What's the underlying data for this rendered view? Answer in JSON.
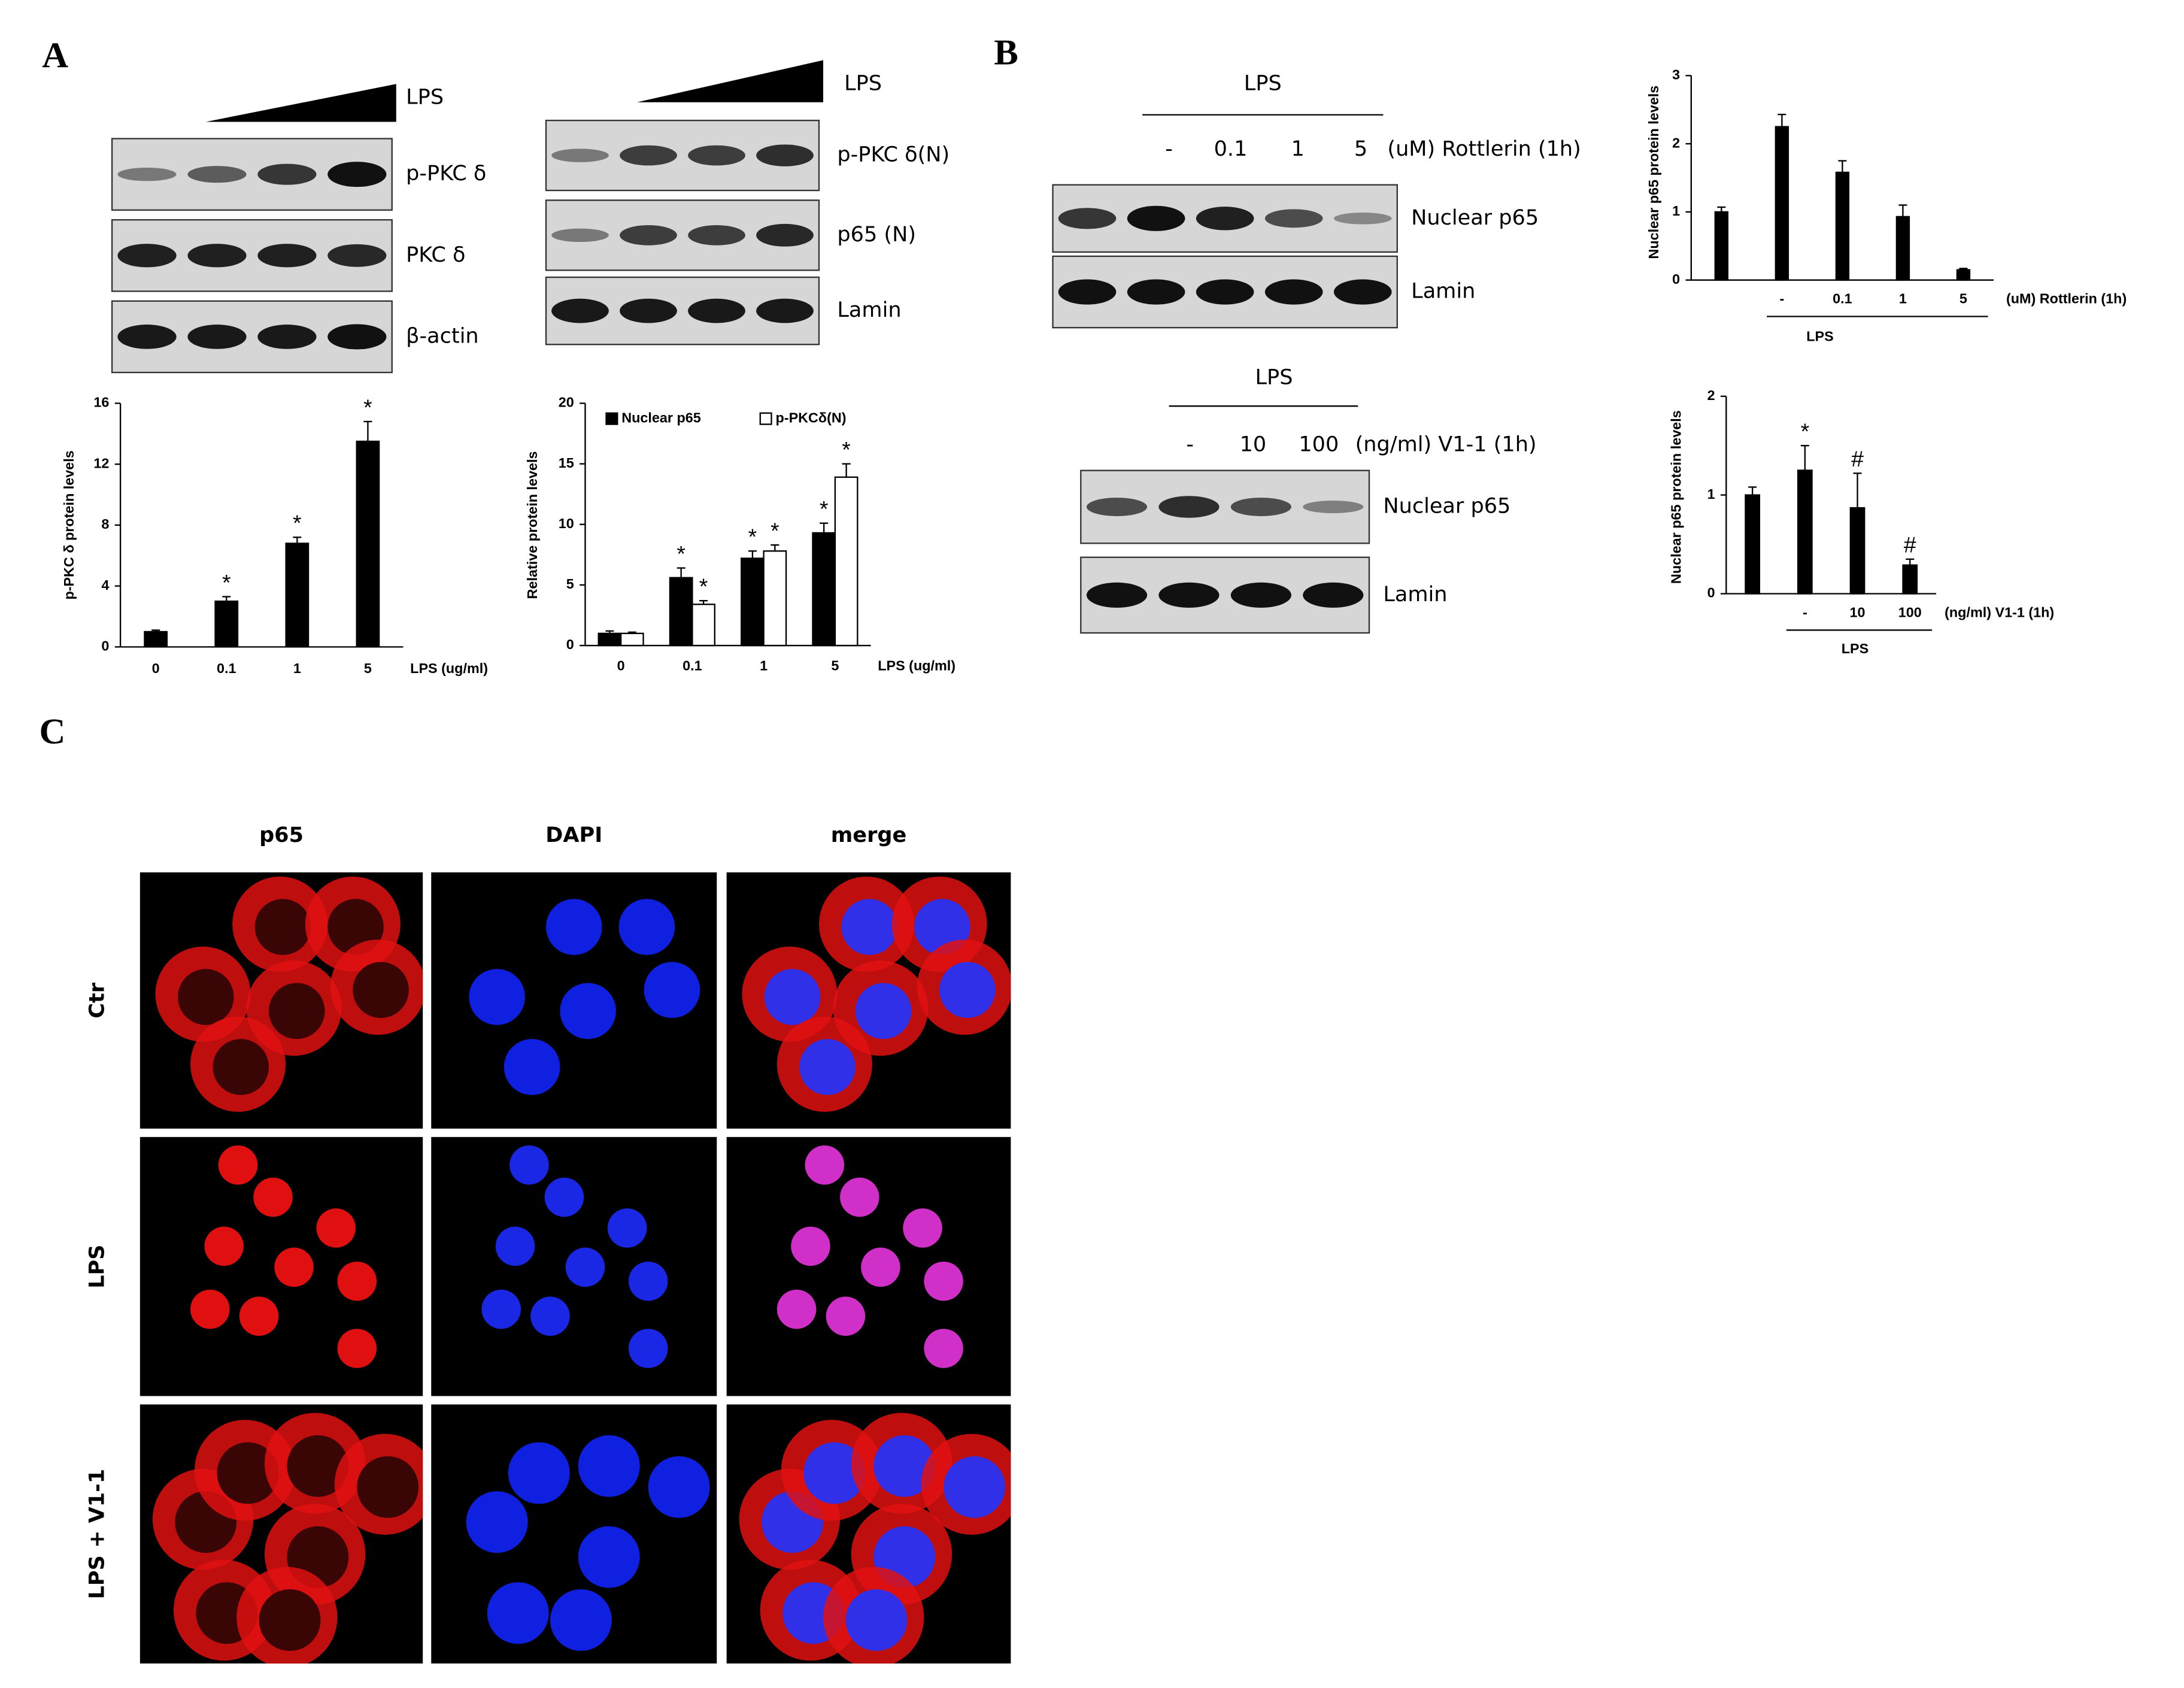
{
  "panel_labels": [
    "A",
    "B",
    "C"
  ],
  "blots": [
    {
      "header": "LPS",
      "rows": [
        "p-PKC δ",
        "PKC δ",
        "β-actin"
      ]
    },
    {
      "header": "LPS",
      "rows": [
        "p-PKC δ(N)",
        "p65 (N)",
        "Lamin"
      ]
    },
    {
      "header": "LPS",
      "lanes": [
        "-",
        "0.1",
        "1",
        "5"
      ],
      "treatment": "(uM) Rottlerin (1h)",
      "rows": [
        "Nuclear p65",
        "Lamin"
      ]
    },
    {
      "header": "LPS",
      "lanes": [
        "-",
        "10",
        "100"
      ],
      "treatment": "(ng/ml)  V1-1 (1h)",
      "rows": [
        "Nuclear p65",
        "Lamin"
      ]
    }
  ],
  "microscopy": {
    "columns": [
      "p65",
      "DAPI",
      "merge"
    ],
    "rows": [
      "Ctr",
      "LPS",
      "LPS + V1-1"
    ]
  },
  "chart_data": [
    {
      "type": "bar",
      "y_label": "p-PKC δ protein levels",
      "x_label": "LPS (ug/ml)",
      "categories": [
        "0",
        "0.1",
        "1",
        "5"
      ],
      "values": [
        1,
        3,
        6.8,
        13.5
      ],
      "errors": [
        0.1,
        0.3,
        0.4,
        1.3
      ],
      "annotations": [
        null,
        "*",
        "*",
        "*"
      ],
      "color": "#000000",
      "ylim": [
        0,
        16
      ],
      "yticks": [
        0,
        4,
        8,
        12,
        16
      ]
    },
    {
      "type": "grouped-bar",
      "y_label": "Relative protein levels",
      "x_label": "LPS (ug/ml)",
      "categories": [
        "0",
        "0.1",
        "1",
        "5"
      ],
      "series": [
        {
          "name": "Nuclear p65",
          "color": "#000000",
          "values": [
            1,
            5.6,
            7.2,
            9.3
          ],
          "errors": [
            0.2,
            0.8,
            0.6,
            0.8
          ],
          "annotations": [
            null,
            "*",
            "*",
            "*"
          ]
        },
        {
          "name": "p-PKCδ(N)",
          "color": "#ffffff",
          "values": [
            1,
            3.4,
            7.8,
            13.9
          ],
          "errors": [
            0.1,
            0.3,
            0.5,
            1.1
          ],
          "annotations": [
            null,
            "*",
            "*",
            "*"
          ]
        }
      ],
      "ylim": [
        0,
        20
      ],
      "yticks": [
        0,
        5,
        10,
        15,
        20
      ]
    },
    {
      "type": "bar",
      "y_label": "Nuclear p65 protein levels",
      "x_label": "(uM) Rottlerin (1h)",
      "group_label": "LPS",
      "categories": [
        null,
        "-",
        "0.1",
        "1",
        "5"
      ],
      "values": [
        1,
        2.25,
        1.58,
        0.93,
        0.15
      ],
      "errors": [
        0.07,
        0.18,
        0.17,
        0.17,
        0.02
      ],
      "color": "#000000",
      "ylim": [
        0,
        3
      ],
      "yticks": [
        0,
        1,
        2,
        3
      ]
    },
    {
      "type": "bar",
      "y_label": "Nuclear p65 protein levels",
      "x_label": "(ng/ml) V1-1 (1h)",
      "group_label": "LPS",
      "categories": [
        null,
        "-",
        "10",
        "100"
      ],
      "values": [
        1,
        1.25,
        0.87,
        0.29
      ],
      "errors": [
        0.08,
        0.25,
        0.35,
        0.06
      ],
      "annotations": [
        null,
        "*",
        "#",
        "#"
      ],
      "color": "#000000",
      "ylim": [
        0,
        2
      ],
      "yticks": [
        0,
        1,
        2
      ]
    }
  ]
}
